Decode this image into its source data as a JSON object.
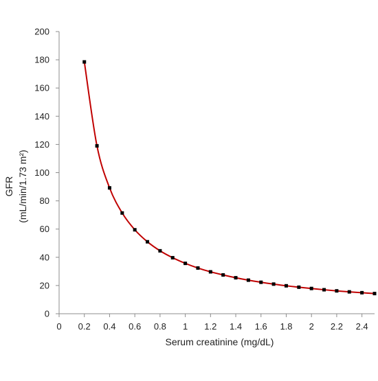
{
  "chart_data": {
    "type": "line",
    "title": "",
    "xlabel": "Serum creatinine (mg/dL)",
    "ylabel": [
      "GFR",
      "(mL/min/1.73 m²)"
    ],
    "xlim": [
      0,
      2.5
    ],
    "ylim": [
      0,
      200
    ],
    "xticks": [
      0,
      0.2,
      0.4,
      0.6,
      0.8,
      1,
      1.2,
      1.4,
      1.6,
      1.8,
      2,
      2.2,
      2.4
    ],
    "xtick_labels": [
      "0",
      "0.2",
      "0.4",
      "0.6",
      "0.8",
      "1",
      "1.2",
      "1.4",
      "1.6",
      "1.8",
      "2",
      "2.2",
      "2.4"
    ],
    "yticks": [
      0,
      20,
      40,
      60,
      80,
      100,
      120,
      140,
      160,
      180,
      200
    ],
    "ytick_labels": [
      "0",
      "20",
      "40",
      "60",
      "80",
      "100",
      "120",
      "140",
      "160",
      "180",
      "200"
    ],
    "grid": false,
    "legend": "none",
    "series": [
      {
        "x": [
          0.2,
          0.3,
          0.4,
          0.5,
          0.6,
          0.7,
          0.8,
          0.9,
          1.0,
          1.1,
          1.2,
          1.3,
          1.4,
          1.5,
          1.6,
          1.7,
          1.8,
          1.9,
          2.0,
          2.1,
          2.2,
          2.3,
          2.4,
          2.5
        ],
        "y": [
          178.5,
          119.0,
          89.2,
          71.4,
          59.5,
          51.0,
          44.6,
          39.7,
          35.7,
          32.4,
          29.7,
          27.5,
          25.5,
          23.8,
          22.3,
          21.0,
          19.8,
          18.8,
          17.9,
          17.0,
          16.2,
          15.5,
          14.9,
          14.3
        ],
        "line_color": "#c00000",
        "marker_color": "#000000",
        "marker": "square"
      }
    ]
  }
}
